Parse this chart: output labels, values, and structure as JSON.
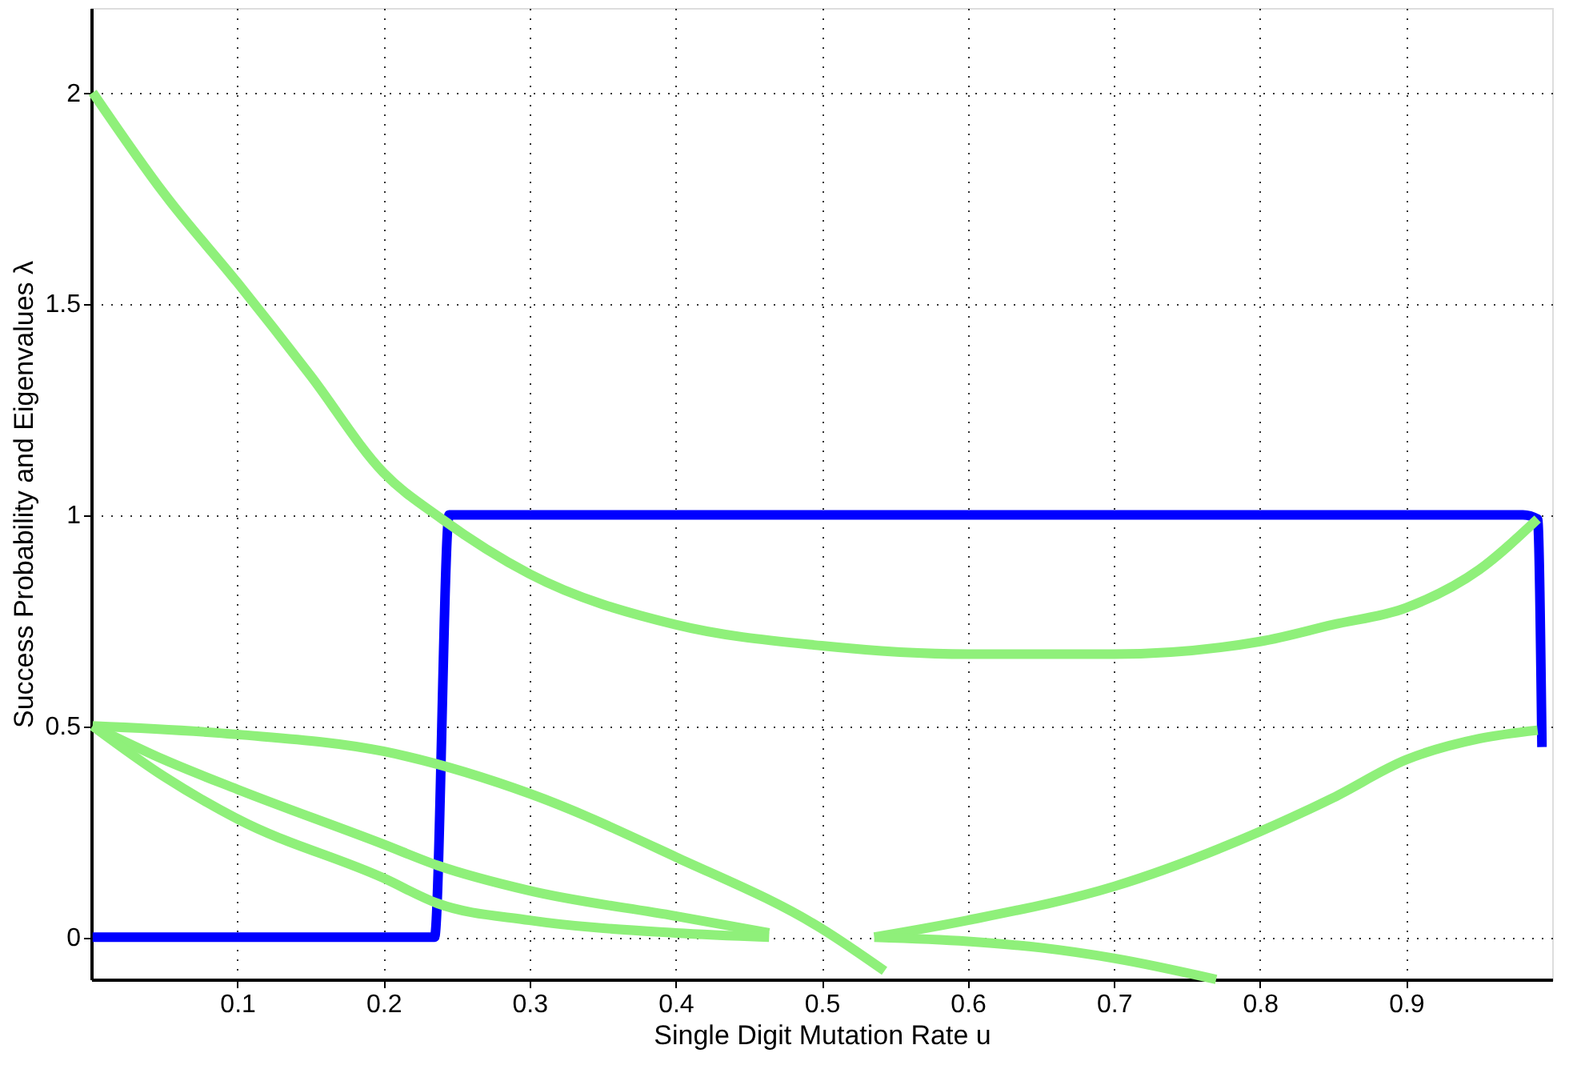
{
  "chart_data": {
    "type": "line",
    "xlabel": "Single Digit Mutation Rate u",
    "ylabel": "Success Probability and Eigenvalues λ",
    "xlim": [
      0,
      1
    ],
    "ylim": [
      -0.1,
      2.2
    ],
    "xticks": [
      0.1,
      0.2,
      0.3,
      0.4,
      0.5,
      0.6,
      0.7,
      0.8,
      0.9
    ],
    "yticks": [
      0,
      0.5,
      1,
      1.5,
      2
    ],
    "grid": true,
    "legend": false,
    "marker": "none",
    "line_style": "solid",
    "series": [
      {
        "color": "#0000ff",
        "x": [
          0.001,
          0.235,
          0.245,
          0.98,
          0.99,
          0.993
        ],
        "values": [
          0,
          0,
          1,
          1,
          0.99,
          0.45
        ]
      },
      {
        "color": "#8ff07a",
        "x": [
          0.001,
          0.05,
          0.1,
          0.15,
          0.2,
          0.24,
          0.3,
          0.4,
          0.5,
          0.6,
          0.7,
          0.8,
          0.85,
          0.9,
          0.95,
          0.99
        ],
        "values": [
          2.0,
          1.76,
          1.55,
          1.33,
          1.1,
          0.99,
          0.86,
          0.74,
          0.69,
          0.67,
          0.67,
          0.7,
          0.74,
          0.78,
          0.87,
          0.99
        ]
      },
      {
        "color": "#8ff07a",
        "x": [
          0.001,
          0.1,
          0.2,
          0.3,
          0.4,
          0.5,
          0.543
        ],
        "values": [
          0.5,
          0.48,
          0.44,
          0.34,
          0.19,
          0.02,
          -0.08
        ]
      },
      {
        "color": "#8ff07a",
        "x": [
          0.001,
          0.05,
          0.1,
          0.2,
          0.237,
          0.3,
          0.4,
          0.464
        ],
        "values": [
          0.5,
          0.42,
          0.35,
          0.22,
          0.17,
          0.11,
          0.05,
          0.01
        ]
      },
      {
        "color": "#8ff07a",
        "x": [
          0.001,
          0.05,
          0.1,
          0.2,
          0.237,
          0.3,
          0.4,
          0.464
        ],
        "values": [
          0.5,
          0.38,
          0.28,
          0.14,
          0.08,
          0.04,
          0.01,
          0.0
        ]
      },
      {
        "color": "#8ff07a",
        "x": [
          0.536,
          0.6,
          0.7,
          0.8,
          0.85,
          0.9,
          0.95,
          0.99
        ],
        "values": [
          0.0,
          0.04,
          0.12,
          0.25,
          0.33,
          0.42,
          0.47,
          0.49
        ]
      },
      {
        "color": "#8ff07a",
        "x": [
          0.536,
          0.6,
          0.65,
          0.7,
          0.77
        ],
        "values": [
          0.0,
          -0.01,
          -0.025,
          -0.05,
          -0.1
        ]
      }
    ]
  }
}
